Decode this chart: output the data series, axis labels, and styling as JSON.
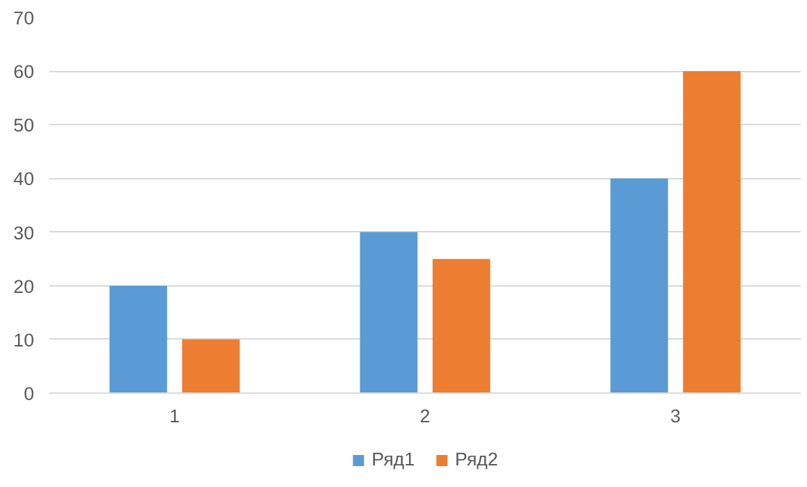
{
  "chart_data": {
    "type": "bar",
    "categories": [
      "1",
      "2",
      "3"
    ],
    "series": [
      {
        "name": "Ряд1",
        "color": "#5b9bd5",
        "values": [
          20,
          30,
          40
        ]
      },
      {
        "name": "Ряд2",
        "color": "#ed7d31",
        "values": [
          10,
          25,
          60
        ]
      }
    ],
    "ylim": [
      0,
      70
    ],
    "yticks": [
      0,
      10,
      20,
      30,
      40,
      50,
      60,
      70
    ],
    "grid": "y",
    "legend": "bottom"
  }
}
